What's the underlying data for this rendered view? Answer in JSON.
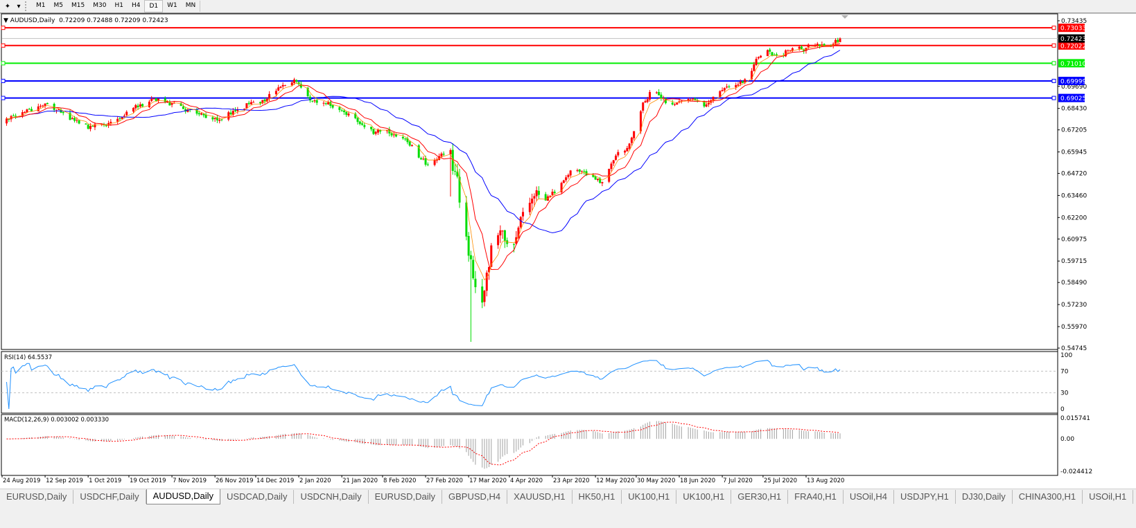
{
  "toolbar": {
    "timeframes": [
      "M1",
      "M5",
      "M15",
      "M30",
      "H1",
      "H4",
      "D1",
      "W1",
      "MN"
    ],
    "active_timeframe": "D1"
  },
  "header": {
    "symbol": "AUDUSD,Daily",
    "open": "0.72209",
    "high": "0.72488",
    "low": "0.72209",
    "close": "0.72423"
  },
  "indicators": {
    "rsi_label": "RSI(14) 64.5537",
    "macd_label": "MACD(12,26,9) 0.003002 0.003330"
  },
  "tabs": [
    "EURUSD,Daily",
    "USDCHF,Daily",
    "AUDUSD,Daily",
    "USDCAD,Daily",
    "USDCNH,Daily",
    "EURUSD,Daily",
    "GBPUSD,H4",
    "XAUUSD,H1",
    "HK50,H1",
    "UK100,H1",
    "UK100,H1",
    "GER30,H1",
    "FRA40,H1",
    "USOil,H4",
    "USDJPY,H1",
    "DJ30,Daily",
    "CHINA300,H1",
    "USOil,H1"
  ],
  "active_tab": 2,
  "chart_data": [
    {
      "type": "candlestick",
      "symbol": "AUDUSD",
      "timeframe": "Daily",
      "ylim": [
        0.54745,
        0.73435
      ],
      "y_ticks": [
        "0.73435",
        "0.69690",
        "0.68430",
        "0.67205",
        "0.65945",
        "0.64720",
        "0.63460",
        "0.62200",
        "0.60975",
        "0.59715",
        "0.58490",
        "0.57230",
        "0.55970",
        "0.54745"
      ],
      "current_price": "0.72423",
      "colors": {
        "up": "#ff0000",
        "down": "#00dd00",
        "ma_fast": "#ff8c00",
        "ma_mid": "#ff0000",
        "ma_slow": "#0000ff"
      },
      "x_ticks": [
        {
          "label": "24 Aug 2019",
          "date": "2019-08-24"
        },
        {
          "label": "12 Sep 2019",
          "date": "2019-09-12"
        },
        {
          "label": "1 Oct 2019",
          "date": "2019-10-01"
        },
        {
          "label": "19 Oct 2019",
          "date": "2019-10-19"
        },
        {
          "label": "7 Nov 2019",
          "date": "2019-11-07"
        },
        {
          "label": "26 Nov 2019",
          "date": "2019-11-26"
        },
        {
          "label": "14 Dec 2019",
          "date": "2019-12-14"
        },
        {
          "label": "2 Jan 2020",
          "date": "2020-01-02"
        },
        {
          "label": "21 Jan 2020",
          "date": "2020-01-21"
        },
        {
          "label": "8 Feb 2020",
          "date": "2020-02-08"
        },
        {
          "label": "27 Feb 2020",
          "date": "2020-02-27"
        },
        {
          "label": "17 Mar 2020",
          "date": "2020-03-17"
        },
        {
          "label": "4 Apr 2020",
          "date": "2020-04-04"
        },
        {
          "label": "23 Apr 2020",
          "date": "2020-04-23"
        },
        {
          "label": "12 May 2020",
          "date": "2020-05-12"
        },
        {
          "label": "30 May 2020",
          "date": "2020-05-30"
        },
        {
          "label": "18 Jun 2020",
          "date": "2020-06-18"
        },
        {
          "label": "7 Jul 2020",
          "date": "2020-07-07"
        },
        {
          "label": "25 Jul 2020",
          "date": "2020-07-25"
        },
        {
          "label": "13 Aug 2020",
          "date": "2020-08-13"
        }
      ],
      "close_path": [
        [
          "2019-08-24",
          0.6759
        ],
        [
          "2019-09-04",
          0.683
        ],
        [
          "2019-09-13",
          0.6869
        ],
        [
          "2019-09-22",
          0.679
        ],
        [
          "2019-10-01",
          0.6731
        ],
        [
          "2019-10-11",
          0.6759
        ],
        [
          "2019-10-20",
          0.6838
        ],
        [
          "2019-11-01",
          0.6901
        ],
        [
          "2019-11-10",
          0.685
        ],
        [
          "2019-11-19",
          0.681
        ],
        [
          "2019-11-28",
          0.6783
        ],
        [
          "2019-12-08",
          0.685
        ],
        [
          "2019-12-17",
          0.6889
        ],
        [
          "2019-12-26",
          0.6968
        ],
        [
          "2020-01-01",
          0.7008
        ],
        [
          "2020-01-07",
          0.6889
        ],
        [
          "2020-01-16",
          0.6869
        ],
        [
          "2020-01-26",
          0.679
        ],
        [
          "2020-02-01",
          0.6711
        ],
        [
          "2020-02-10",
          0.6711
        ],
        [
          "2020-02-19",
          0.6652
        ],
        [
          "2020-02-28",
          0.6514
        ],
        [
          "2020-03-08",
          0.6613
        ],
        [
          "2020-03-12",
          0.6435
        ],
        [
          "2020-03-15",
          0.6158
        ],
        [
          "2020-03-18",
          0.5961
        ],
        [
          "2020-03-21",
          0.5802
        ],
        [
          "2020-03-23",
          0.5724
        ],
        [
          "2020-03-27",
          0.604
        ],
        [
          "2020-03-30",
          0.6158
        ],
        [
          "2020-04-05",
          0.6
        ],
        [
          "2020-04-10",
          0.6237
        ],
        [
          "2020-04-14",
          0.6356
        ],
        [
          "2020-04-20",
          0.6316
        ],
        [
          "2020-04-27",
          0.6415
        ],
        [
          "2020-05-03",
          0.6514
        ],
        [
          "2020-05-09",
          0.6455
        ],
        [
          "2020-05-15",
          0.6415
        ],
        [
          "2020-05-21",
          0.6573
        ],
        [
          "2020-05-27",
          0.6632
        ],
        [
          "2020-06-02",
          0.6869
        ],
        [
          "2020-06-07",
          0.6968
        ],
        [
          "2020-06-11",
          0.6889
        ],
        [
          "2020-06-17",
          0.6869
        ],
        [
          "2020-06-24",
          0.6889
        ],
        [
          "2020-06-30",
          0.6861
        ],
        [
          "2020-07-06",
          0.6948
        ],
        [
          "2020-07-12",
          0.6968
        ],
        [
          "2020-07-18",
          0.7008
        ],
        [
          "2020-07-23",
          0.7146
        ],
        [
          "2020-07-27",
          0.7166
        ],
        [
          "2020-08-02",
          0.7146
        ],
        [
          "2020-08-07",
          0.7194
        ],
        [
          "2020-08-11",
          0.7178
        ],
        [
          "2020-08-18",
          0.7217
        ],
        [
          "2020-08-22",
          0.7178
        ],
        [
          "2020-08-28",
          0.7242
        ]
      ],
      "notable_lows": [
        {
          "date": "2020-03-19",
          "low": 0.551
        },
        {
          "date": "2020-03-09",
          "low": 0.634
        }
      ],
      "levels": [
        {
          "value": "0.73033",
          "color": "#ff0000"
        },
        {
          "value": "0.72022",
          "color": "#ff0000"
        },
        {
          "value": "0.71010",
          "color": "#00ee00"
        },
        {
          "value": "0.69999",
          "color": "#0000ff"
        },
        {
          "value": "0.69025",
          "color": "#0000ff"
        }
      ]
    },
    {
      "type": "line",
      "name": "RSI(14)",
      "value": 64.5537,
      "ylim": [
        0,
        100
      ],
      "y_ticks": [
        "100",
        "70",
        "30",
        "0"
      ],
      "levels": [
        70,
        30
      ],
      "color": "#1e90ff"
    },
    {
      "type": "bar",
      "name": "MACD(12,26,9)",
      "main": 0.003002,
      "signal": 0.00333,
      "ylim": [
        -0.024412,
        0.015741
      ],
      "y_ticks": [
        "0.015741",
        "0.00",
        "-0.024412"
      ],
      "colors": {
        "histogram": "#a0a0a0",
        "signal": "#ff0000"
      }
    }
  ]
}
